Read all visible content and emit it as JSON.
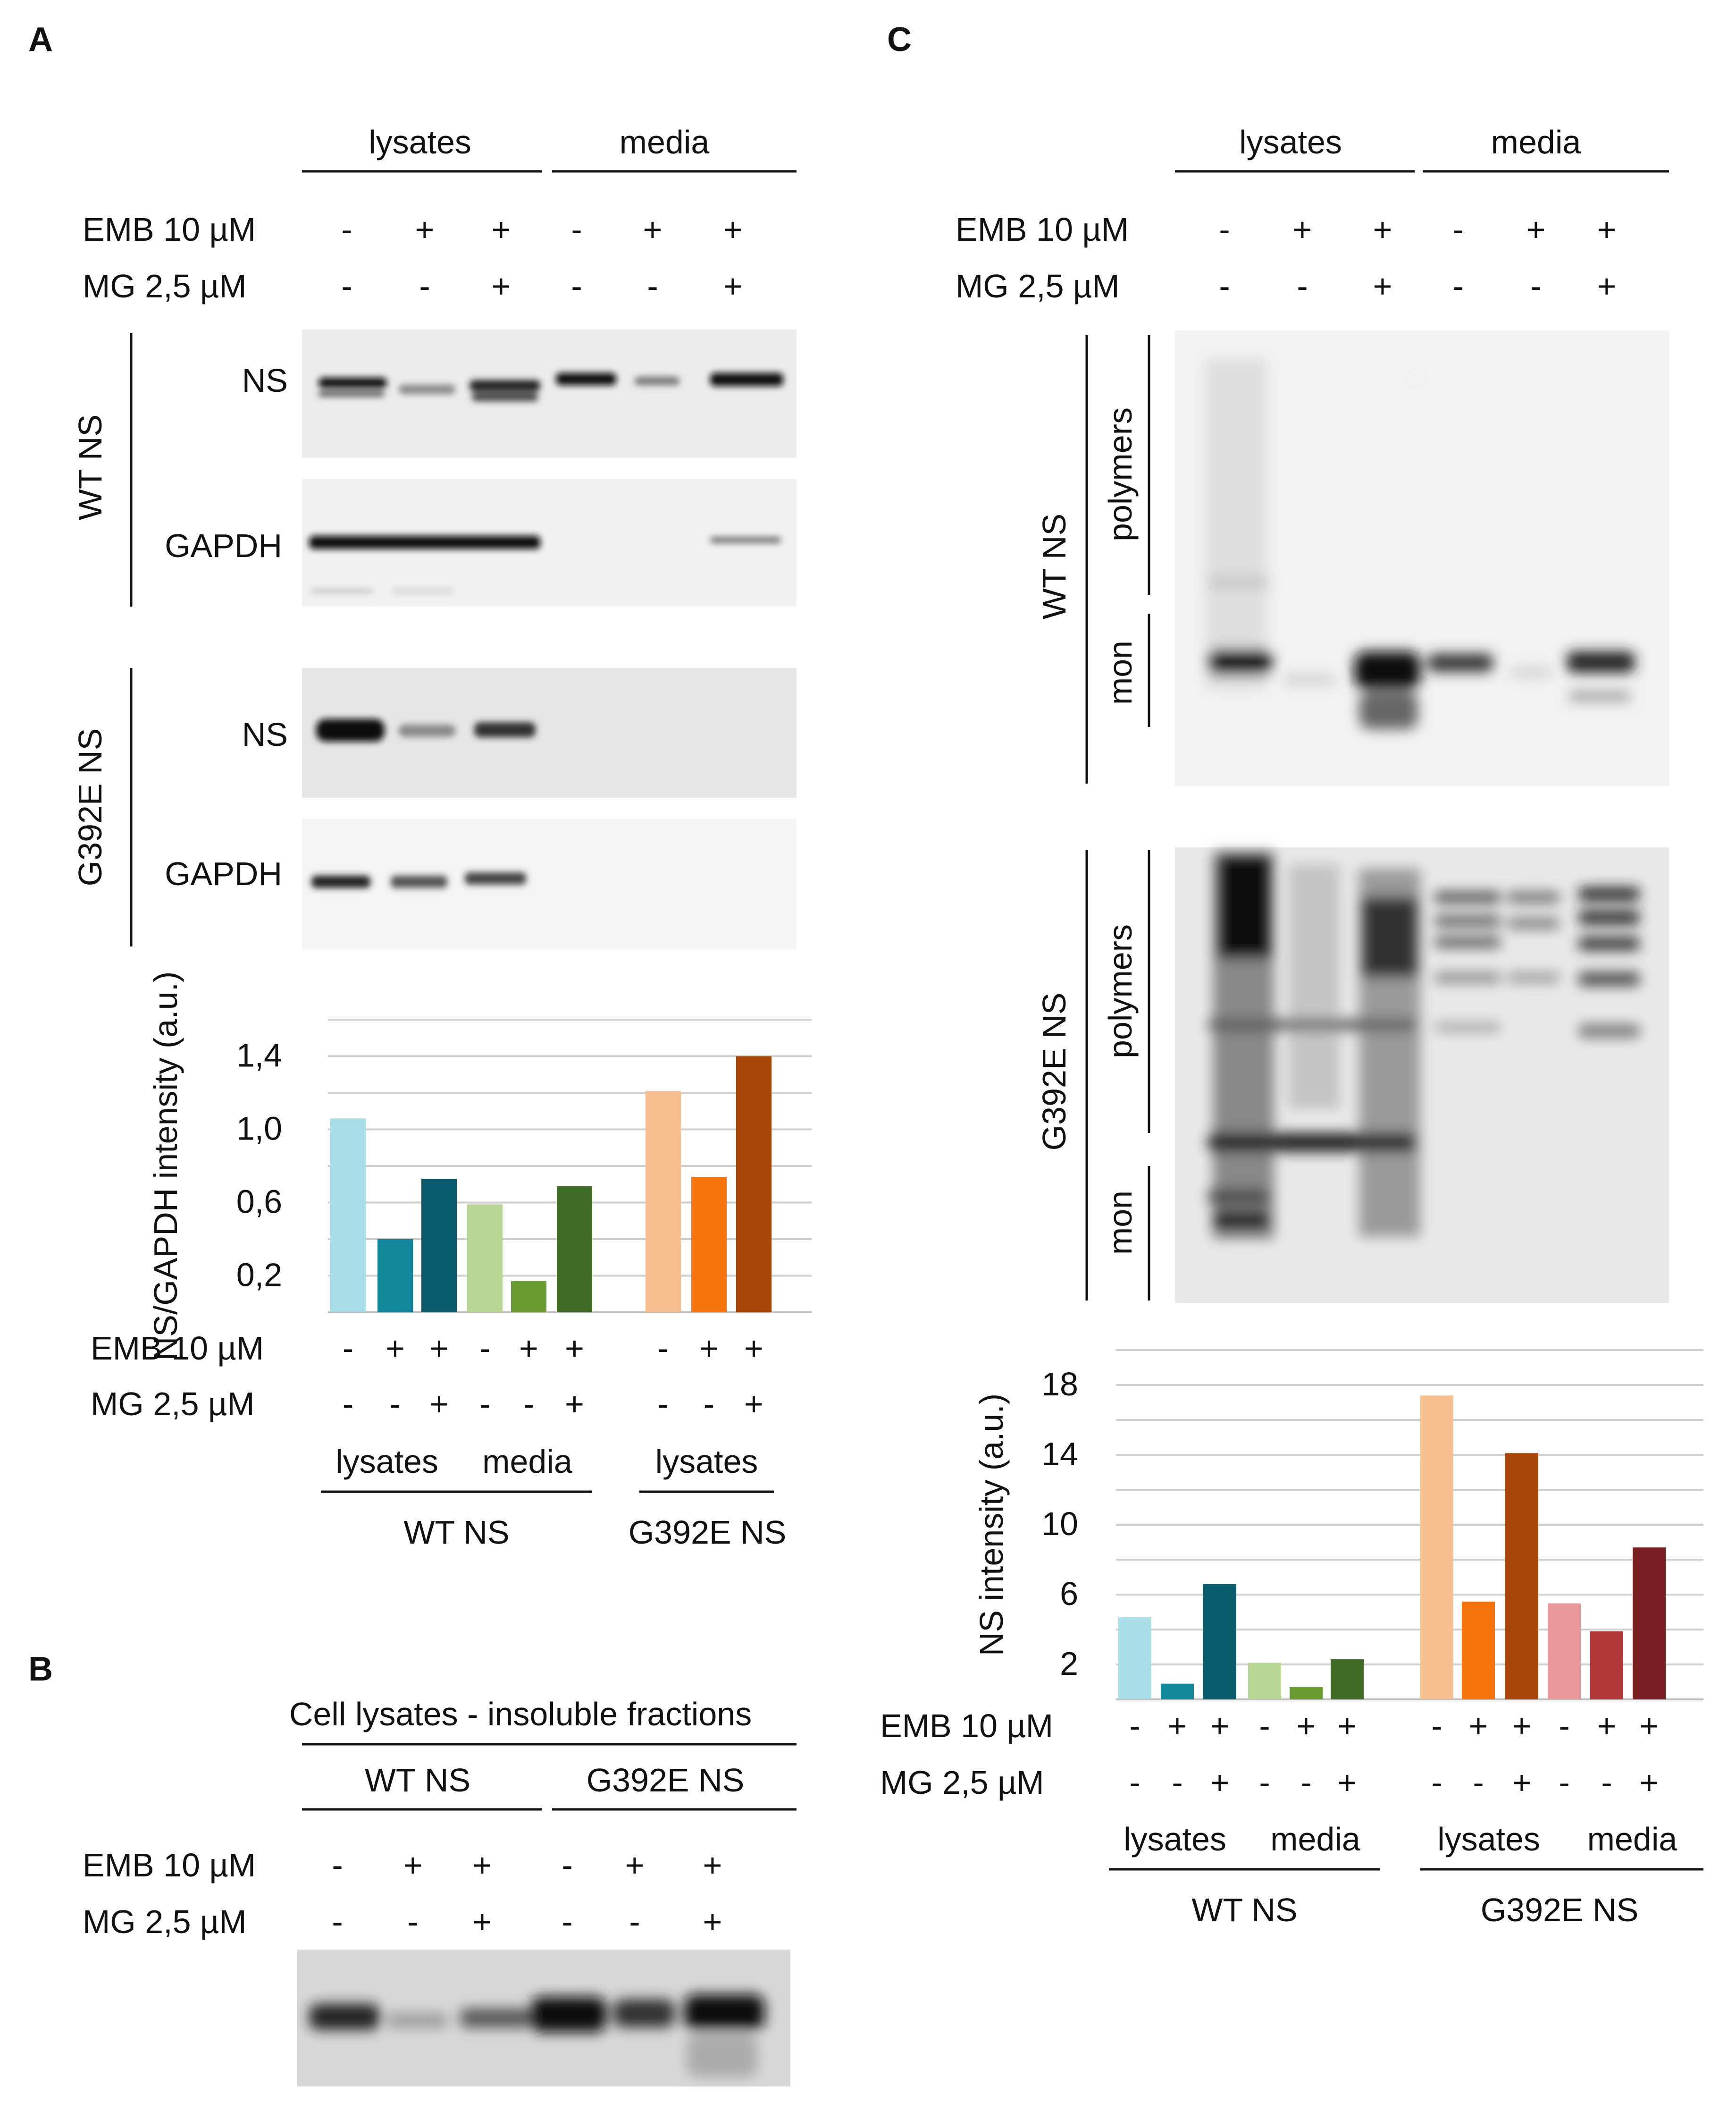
{
  "panels": {
    "a": "A",
    "b": "B",
    "c": "C"
  },
  "labels": {
    "lysates": "lysates",
    "media": "media",
    "emb": "EMB 10 µM",
    "mg": "MG 2,5 µM",
    "ns": "NS",
    "gapdh": "GAPDH",
    "wt_ns": "WT NS",
    "g392e_ns": "G392E NS",
    "polymers": "polymers",
    "mon": "mon"
  },
  "treatment_signs": {
    "emb": [
      "-",
      "+",
      "+",
      "-",
      "+",
      "+"
    ],
    "mg": [
      "-",
      "-",
      "+",
      "-",
      "-",
      "+"
    ]
  },
  "panel_b": {
    "title": "Cell lysates - insoluble fractions"
  },
  "colors": {
    "wt_lys": [
      "#a8dde8",
      "#12869a",
      "#0a5c6c"
    ],
    "wt_med": [
      "#b9d896",
      "#6a9a32",
      "#3f6a26"
    ],
    "g_lys": [
      "#f8c090",
      "#f8730b",
      "#a84406"
    ],
    "g_med": [
      "#e89898",
      "#b03838",
      "#7a1e22"
    ]
  },
  "chart_data": [
    {
      "type": "bar",
      "panel": "A",
      "ylabel": "NS/GAPDH intensity (a.u.)",
      "yticks": [
        "0,2",
        "0,6",
        "1,0",
        "1,4"
      ],
      "ylim": [
        0,
        1.6
      ],
      "series": [
        {
          "name": "WT NS lysates",
          "values": [
            1.06,
            0.4,
            0.73
          ]
        },
        {
          "name": "WT NS media",
          "values": [
            0.59,
            0.17,
            0.69
          ]
        },
        {
          "name": "G392E NS lysates",
          "values": [
            1.21,
            0.74,
            1.4
          ]
        }
      ],
      "emb": [
        "-",
        "+",
        "+",
        "-",
        "+",
        "+",
        "-",
        "+",
        "+"
      ],
      "mg": [
        "-",
        "-",
        "+",
        "-",
        "-",
        "+",
        "-",
        "-",
        "+"
      ],
      "group_labels": [
        "lysates",
        "media",
        "lysates"
      ],
      "construct_labels": [
        "WT NS",
        "G392E NS"
      ]
    },
    {
      "type": "bar",
      "panel": "C",
      "ylabel": "NS intensity (a.u.)",
      "yticks": [
        "2",
        "6",
        "10",
        "14",
        "18"
      ],
      "ylim": [
        0,
        20
      ],
      "series": [
        {
          "name": "WT NS lysates",
          "values": [
            4.7,
            0.9,
            6.6
          ]
        },
        {
          "name": "WT NS media",
          "values": [
            2.1,
            0.7,
            2.3
          ]
        },
        {
          "name": "G392E NS lysates",
          "values": [
            17.4,
            5.6,
            14.1
          ]
        },
        {
          "name": "G392E NS media",
          "values": [
            5.5,
            3.9,
            8.7
          ]
        }
      ],
      "emb": [
        "-",
        "+",
        "+",
        "-",
        "+",
        "+",
        "-",
        "+",
        "+",
        "-",
        "+",
        "+"
      ],
      "mg": [
        "-",
        "-",
        "+",
        "-",
        "-",
        "+",
        "-",
        "-",
        "+",
        "-",
        "-",
        "+"
      ],
      "group_labels": [
        "lysates",
        "media",
        "lysates",
        "media"
      ],
      "construct_labels": [
        "WT NS",
        "G392E NS"
      ]
    }
  ]
}
